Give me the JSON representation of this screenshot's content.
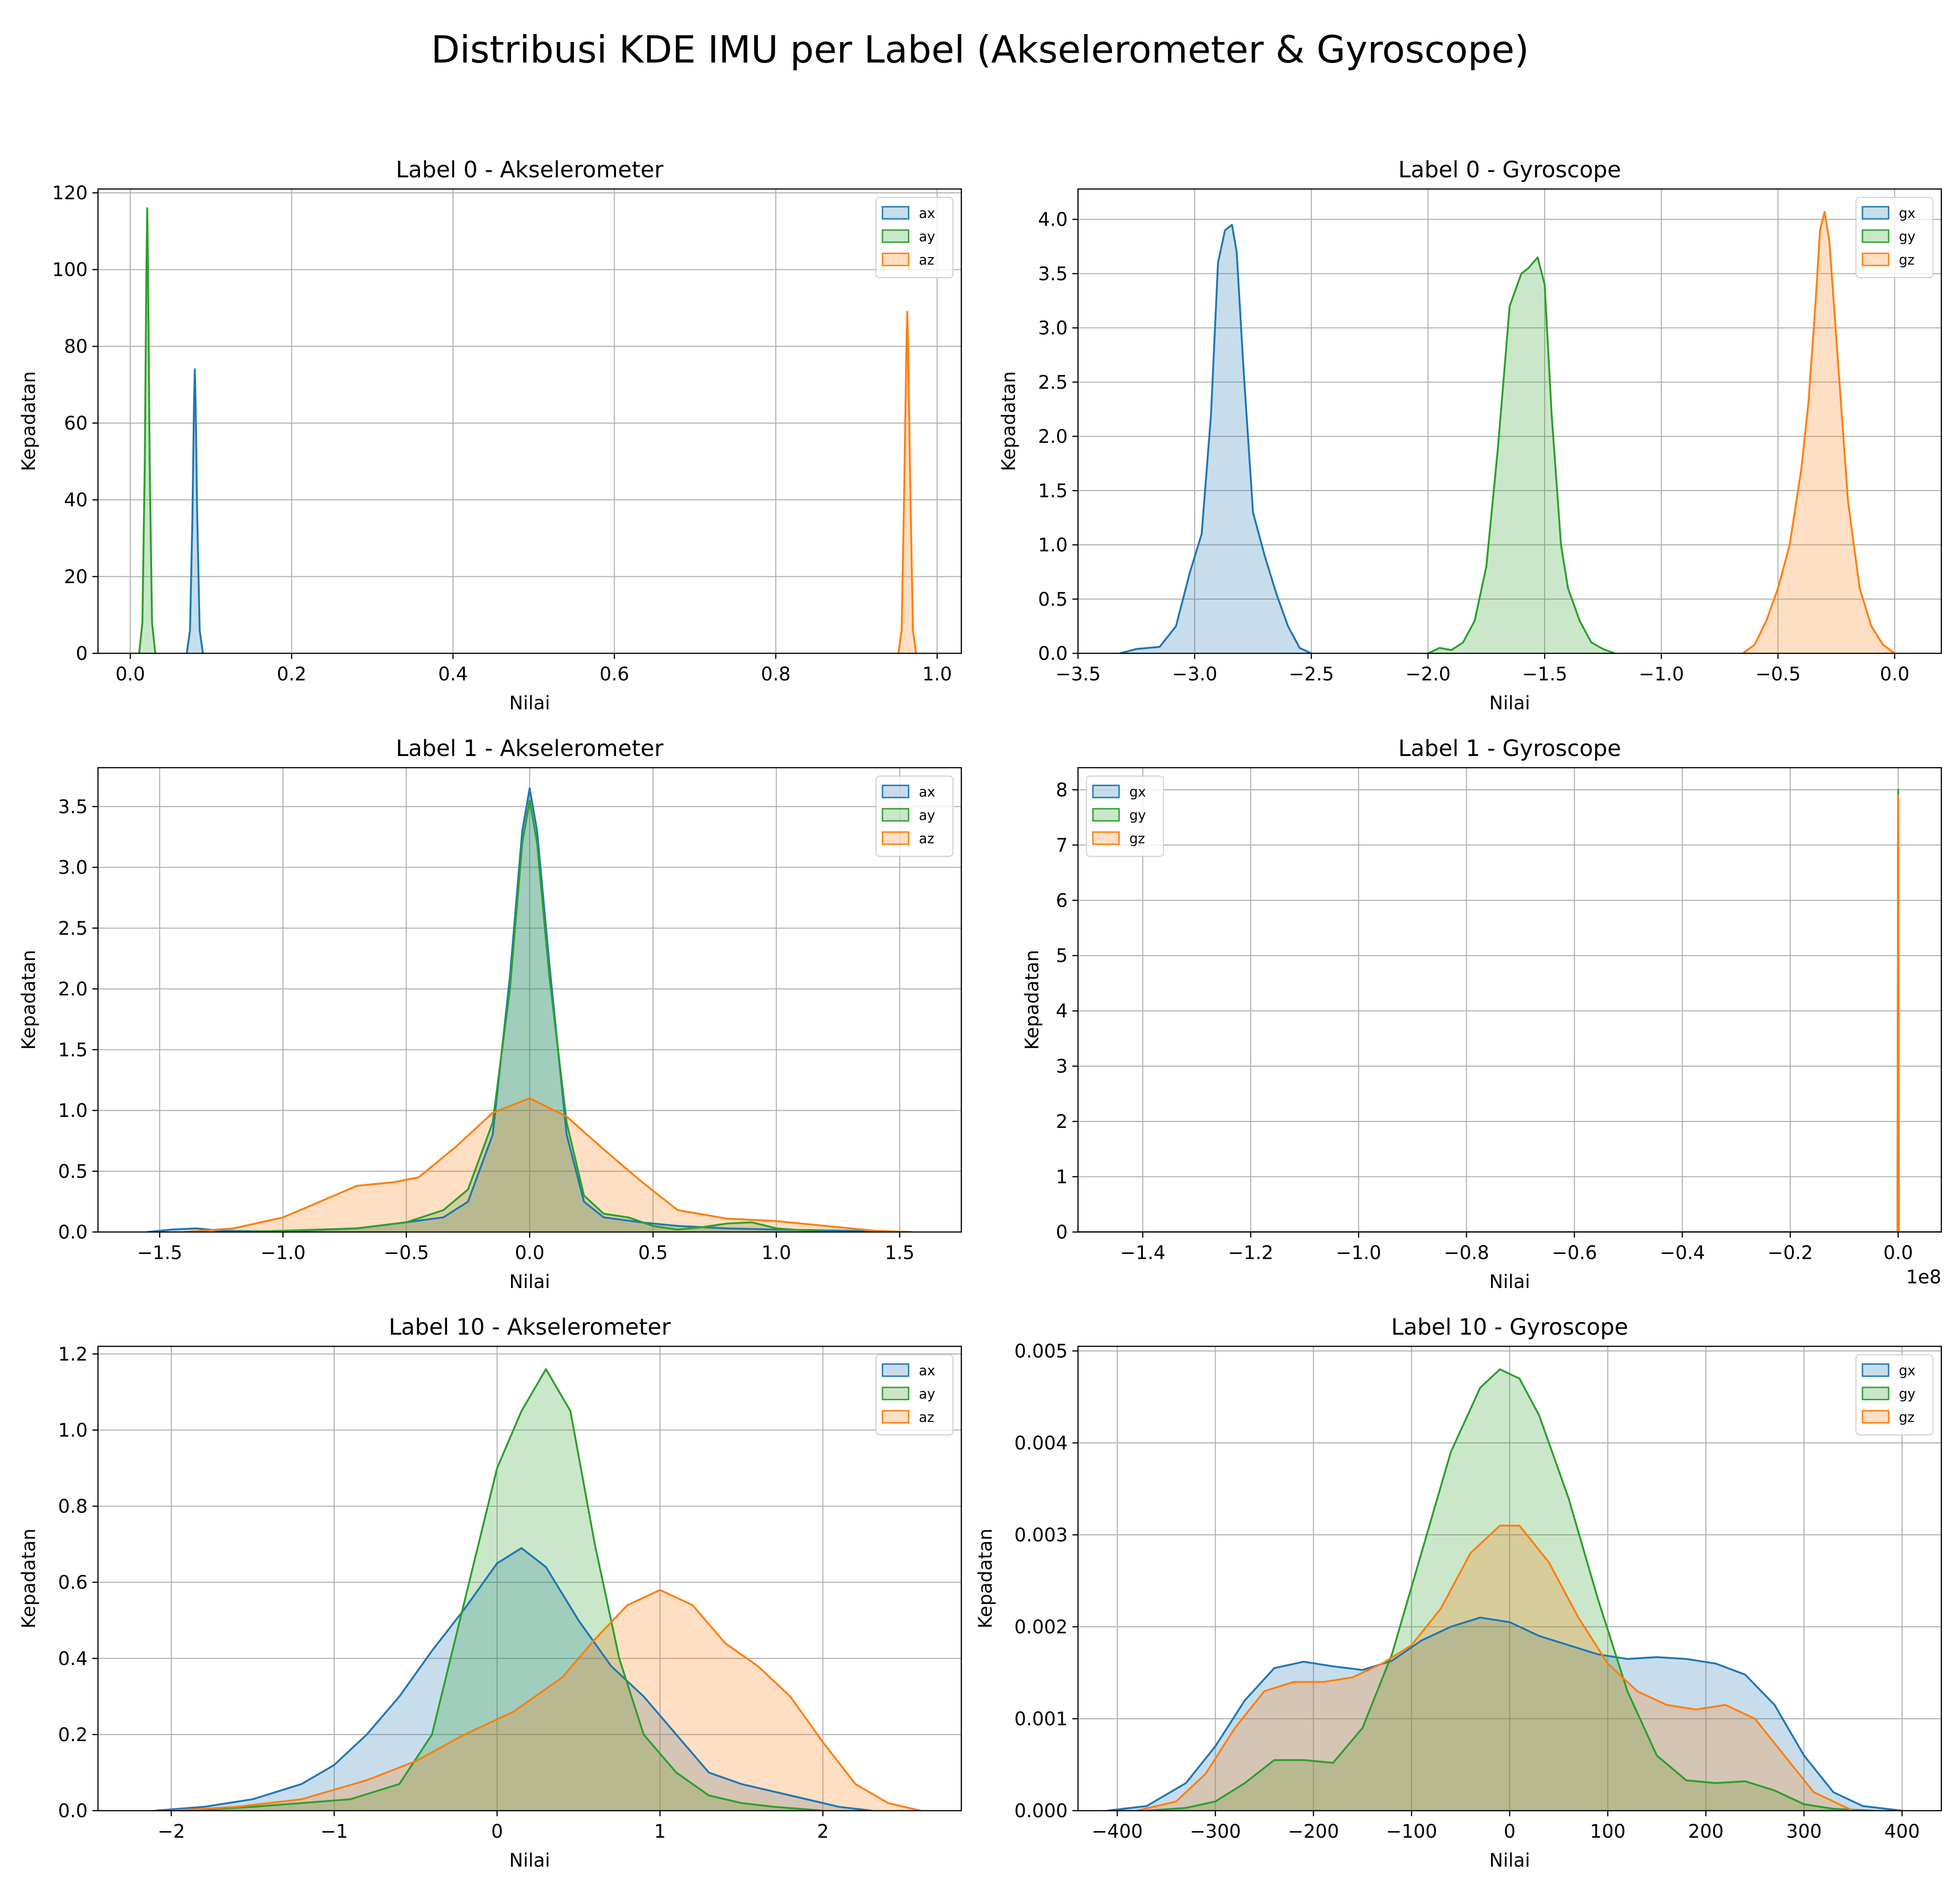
{
  "figure": {
    "title": "Distribusi KDE IMU per Label (Akselerometer & Gyroscope)",
    "colors": {
      "x": "#1f77b4",
      "y": "#2ca02c",
      "z": "#ff7f0e"
    }
  },
  "chart_data": [
    {
      "type": "area",
      "title": "Label 0 - Akselerometer",
      "xlabel": "Nilai",
      "ylabel": "Kepadatan",
      "xlim": [
        -0.04,
        1.03
      ],
      "ylim": [
        0,
        121
      ],
      "xticks": [
        0.0,
        0.2,
        0.4,
        0.6,
        0.8,
        1.0
      ],
      "xtick_labels": [
        "0.0",
        "0.2",
        "0.4",
        "0.6",
        "0.8",
        "1.0"
      ],
      "yticks": [
        0,
        20,
        40,
        60,
        80,
        100,
        120
      ],
      "ytick_labels": [
        "0",
        "20",
        "40",
        "60",
        "80",
        "100",
        "120"
      ],
      "grid": true,
      "legend": "top-right",
      "series": [
        {
          "name": "ax",
          "color": "#1f77b4",
          "x": [
            0.07,
            0.074,
            0.077,
            0.079,
            0.08,
            0.081,
            0.083,
            0.086,
            0.09
          ],
          "y": [
            0,
            6,
            35,
            65,
            74,
            65,
            35,
            6,
            0
          ]
        },
        {
          "name": "ay",
          "color": "#2ca02c",
          "x": [
            0.011,
            0.015,
            0.018,
            0.02,
            0.021,
            0.022,
            0.024,
            0.027,
            0.031
          ],
          "y": [
            0,
            8,
            50,
            100,
            116,
            100,
            50,
            8,
            0
          ]
        },
        {
          "name": "az",
          "color": "#ff7f0e",
          "x": [
            0.952,
            0.956,
            0.959,
            0.962,
            0.963,
            0.964,
            0.967,
            0.97,
            0.974
          ],
          "y": [
            0,
            6,
            40,
            80,
            89,
            80,
            40,
            6,
            0
          ]
        }
      ]
    },
    {
      "type": "area",
      "title": "Label 0 - Gyroscope",
      "xlabel": "Nilai",
      "ylabel": "Kepadatan",
      "xlim": [
        -3.5,
        0.2
      ],
      "ylim": [
        0,
        4.28
      ],
      "xticks": [
        -3.5,
        -3.0,
        -2.5,
        -2.0,
        -1.5,
        -1.0,
        -0.5,
        0.0
      ],
      "xtick_labels": [
        "−3.5",
        "−3.0",
        "−2.5",
        "−2.0",
        "−1.5",
        "−1.0",
        "−0.5",
        "0.0"
      ],
      "yticks": [
        0.0,
        0.5,
        1.0,
        1.5,
        2.0,
        2.5,
        3.0,
        3.5,
        4.0
      ],
      "ytick_labels": [
        "0.0",
        "0.5",
        "1.0",
        "1.5",
        "2.0",
        "2.5",
        "3.0",
        "3.5",
        "4.0"
      ],
      "grid": true,
      "legend": "top-right",
      "series": [
        {
          "name": "gx",
          "color": "#1f77b4",
          "x": [
            -3.32,
            -3.25,
            -3.15,
            -3.08,
            -3.02,
            -2.97,
            -2.93,
            -2.9,
            -2.87,
            -2.84,
            -2.82,
            -2.79,
            -2.75,
            -2.7,
            -2.65,
            -2.6,
            -2.55,
            -2.5
          ],
          "y": [
            0,
            0.04,
            0.06,
            0.25,
            0.75,
            1.1,
            2.2,
            3.6,
            3.9,
            3.95,
            3.7,
            2.6,
            1.3,
            0.9,
            0.55,
            0.25,
            0.05,
            0
          ]
        },
        {
          "name": "gy",
          "color": "#2ca02c",
          "x": [
            -2.0,
            -1.95,
            -1.9,
            -1.85,
            -1.8,
            -1.75,
            -1.7,
            -1.65,
            -1.6,
            -1.57,
            -1.53,
            -1.5,
            -1.47,
            -1.43,
            -1.4,
            -1.35,
            -1.3,
            -1.25,
            -1.2
          ],
          "y": [
            0,
            0.05,
            0.03,
            0.1,
            0.3,
            0.8,
            1.9,
            3.2,
            3.5,
            3.55,
            3.65,
            3.4,
            2.2,
            1.0,
            0.6,
            0.3,
            0.1,
            0.04,
            0
          ]
        },
        {
          "name": "gz",
          "color": "#ff7f0e",
          "x": [
            -0.65,
            -0.6,
            -0.55,
            -0.5,
            -0.45,
            -0.4,
            -0.37,
            -0.34,
            -0.32,
            -0.3,
            -0.28,
            -0.25,
            -0.2,
            -0.15,
            -0.1,
            -0.05,
            0.0
          ],
          "y": [
            0,
            0.08,
            0.3,
            0.6,
            1.0,
            1.7,
            2.3,
            3.2,
            3.9,
            4.07,
            3.8,
            2.9,
            1.4,
            0.6,
            0.25,
            0.08,
            0
          ]
        }
      ]
    },
    {
      "type": "area",
      "title": "Label 1 - Akselerometer",
      "xlabel": "Nilai",
      "ylabel": "Kepadatan",
      "xlim": [
        -1.75,
        1.75
      ],
      "ylim": [
        0,
        3.82
      ],
      "xticks": [
        -1.5,
        -1.0,
        -0.5,
        0.0,
        0.5,
        1.0,
        1.5
      ],
      "xtick_labels": [
        "−1.5",
        "−1.0",
        "−0.5",
        "0.0",
        "0.5",
        "1.0",
        "1.5"
      ],
      "yticks": [
        0.0,
        0.5,
        1.0,
        1.5,
        2.0,
        2.5,
        3.0,
        3.5
      ],
      "ytick_labels": [
        "0.0",
        "0.5",
        "1.0",
        "1.5",
        "2.0",
        "2.5",
        "3.0",
        "3.5"
      ],
      "grid": true,
      "legend": "top-right",
      "series": [
        {
          "name": "ax",
          "color": "#1f77b4",
          "x": [
            -1.55,
            -1.45,
            -1.35,
            -1.25,
            -1.0,
            -0.7,
            -0.5,
            -0.35,
            -0.25,
            -0.15,
            -0.08,
            -0.03,
            0.0,
            0.03,
            0.08,
            0.15,
            0.22,
            0.3,
            0.45,
            0.6,
            0.8,
            1.0,
            1.3,
            1.55
          ],
          "y": [
            0,
            0.02,
            0.03,
            0.01,
            0.005,
            0.03,
            0.08,
            0.12,
            0.25,
            0.8,
            2.1,
            3.3,
            3.65,
            3.3,
            2.2,
            0.8,
            0.25,
            0.12,
            0.08,
            0.05,
            0.03,
            0.02,
            0.01,
            0
          ]
        },
        {
          "name": "ay",
          "color": "#2ca02c",
          "x": [
            -1.2,
            -1.0,
            -0.7,
            -0.5,
            -0.35,
            -0.25,
            -0.15,
            -0.08,
            -0.03,
            0.0,
            0.03,
            0.08,
            0.15,
            0.22,
            0.3,
            0.4,
            0.5,
            0.6,
            0.7,
            0.8,
            0.9,
            1.0,
            1.2
          ],
          "y": [
            0,
            0.01,
            0.03,
            0.08,
            0.18,
            0.35,
            0.9,
            2.0,
            3.2,
            3.55,
            3.2,
            2.1,
            0.9,
            0.3,
            0.15,
            0.12,
            0.05,
            0.02,
            0.04,
            0.07,
            0.08,
            0.03,
            0
          ]
        },
        {
          "name": "az",
          "color": "#ff7f0e",
          "x": [
            -1.4,
            -1.2,
            -1.0,
            -0.85,
            -0.7,
            -0.55,
            -0.45,
            -0.3,
            -0.15,
            0.0,
            0.15,
            0.3,
            0.45,
            0.6,
            0.8,
            1.0,
            1.2,
            1.4,
            1.55
          ],
          "y": [
            0,
            0.03,
            0.12,
            0.25,
            0.38,
            0.41,
            0.45,
            0.7,
            0.98,
            1.1,
            0.95,
            0.68,
            0.42,
            0.18,
            0.11,
            0.09,
            0.05,
            0.01,
            0
          ]
        }
      ]
    },
    {
      "type": "area",
      "title": "Label 1 - Gyroscope",
      "xlabel": "Nilai",
      "ylabel": "Kepadatan",
      "x_offset_label": "1e8",
      "xlim": [
        -1.52,
        0.08
      ],
      "ylim": [
        0,
        8.4
      ],
      "xticks": [
        -1.4,
        -1.2,
        -1.0,
        -0.8,
        -0.6,
        -0.4,
        -0.2,
        0.0
      ],
      "xtick_labels": [
        "−1.4",
        "−1.2",
        "−1.0",
        "−0.8",
        "−0.6",
        "−0.4",
        "−0.2",
        "0.0"
      ],
      "yticks": [
        0,
        1,
        2,
        3,
        4,
        5,
        6,
        7,
        8
      ],
      "ytick_labels": [
        "0",
        "1",
        "2",
        "3",
        "4",
        "5",
        "6",
        "7",
        "8"
      ],
      "grid": true,
      "legend": "top-left",
      "series": [
        {
          "name": "gx",
          "color": "#1f77b4",
          "x": [
            -1.52,
            -0.0012,
            0.0,
            0.0012,
            0.08
          ],
          "y": [
            0,
            0,
            8.0,
            0,
            0
          ]
        },
        {
          "name": "gy",
          "color": "#2ca02c",
          "x": [
            -1.52,
            -0.0012,
            0.0,
            0.0012,
            0.08
          ],
          "y": [
            0,
            0,
            8.0,
            0,
            0
          ]
        },
        {
          "name": "gz",
          "color": "#ff7f0e",
          "x": [
            -1.52,
            -0.0012,
            0.0,
            0.0012,
            0.08
          ],
          "y": [
            0,
            0,
            7.9,
            0,
            0
          ]
        }
      ]
    },
    {
      "type": "area",
      "title": "Label 10 - Akselerometer",
      "xlabel": "Nilai",
      "ylabel": "Kepadatan",
      "xlim": [
        -2.45,
        2.85
      ],
      "ylim": [
        0,
        1.22
      ],
      "xticks": [
        -2,
        -1,
        0,
        1,
        2
      ],
      "xtick_labels": [
        "−2",
        "−1",
        "0",
        "1",
        "2"
      ],
      "yticks": [
        0.0,
        0.2,
        0.4,
        0.6,
        0.8,
        1.0,
        1.2
      ],
      "ytick_labels": [
        "0.0",
        "0.2",
        "0.4",
        "0.6",
        "0.8",
        "1.0",
        "1.2"
      ],
      "grid": true,
      "legend": "top-right",
      "series": [
        {
          "name": "ax",
          "color": "#1f77b4",
          "x": [
            -2.1,
            -1.8,
            -1.5,
            -1.2,
            -1.0,
            -0.8,
            -0.6,
            -0.4,
            -0.2,
            0.0,
            0.15,
            0.3,
            0.5,
            0.7,
            0.9,
            1.1,
            1.3,
            1.5,
            1.7,
            1.9,
            2.1,
            2.3
          ],
          "y": [
            0,
            0.01,
            0.03,
            0.07,
            0.12,
            0.2,
            0.3,
            0.42,
            0.53,
            0.65,
            0.69,
            0.64,
            0.5,
            0.38,
            0.3,
            0.2,
            0.1,
            0.07,
            0.05,
            0.03,
            0.01,
            0
          ]
        },
        {
          "name": "ay",
          "color": "#2ca02c",
          "x": [
            -1.9,
            -1.5,
            -1.2,
            -0.9,
            -0.6,
            -0.4,
            -0.2,
            0.0,
            0.15,
            0.3,
            0.45,
            0.6,
            0.75,
            0.9,
            1.1,
            1.3,
            1.5,
            1.7,
            2.0
          ],
          "y": [
            0,
            0.01,
            0.02,
            0.03,
            0.07,
            0.2,
            0.55,
            0.9,
            1.05,
            1.16,
            1.05,
            0.7,
            0.4,
            0.2,
            0.1,
            0.04,
            0.02,
            0.01,
            0
          ]
        },
        {
          "name": "az",
          "color": "#ff7f0e",
          "x": [
            -2.0,
            -1.6,
            -1.2,
            -0.8,
            -0.5,
            -0.2,
            0.1,
            0.4,
            0.6,
            0.8,
            1.0,
            1.2,
            1.4,
            1.6,
            1.8,
            2.0,
            2.2,
            2.4,
            2.6
          ],
          "y": [
            0,
            0.01,
            0.03,
            0.08,
            0.13,
            0.2,
            0.26,
            0.35,
            0.45,
            0.54,
            0.58,
            0.54,
            0.44,
            0.38,
            0.3,
            0.18,
            0.07,
            0.02,
            0
          ]
        }
      ]
    },
    {
      "type": "area",
      "title": "Label 10 - Gyroscope",
      "xlabel": "Nilai",
      "ylabel": "Kepadatan",
      "xlim": [
        -440,
        440
      ],
      "ylim": [
        0,
        0.00505
      ],
      "xticks": [
        -400,
        -300,
        -200,
        -100,
        0,
        100,
        200,
        300,
        400
      ],
      "xtick_labels": [
        "−400",
        "−300",
        "−200",
        "−100",
        "0",
        "100",
        "200",
        "300",
        "400"
      ],
      "yticks": [
        0.0,
        0.001,
        0.002,
        0.003,
        0.004,
        0.005
      ],
      "ytick_labels": [
        "0.000",
        "0.001",
        "0.002",
        "0.003",
        "0.004",
        "0.005"
      ],
      "grid": true,
      "legend": "top-right",
      "series": [
        {
          "name": "gx",
          "color": "#1f77b4",
          "x": [
            -410,
            -370,
            -330,
            -300,
            -270,
            -240,
            -210,
            -180,
            -150,
            -120,
            -90,
            -60,
            -30,
            0,
            30,
            60,
            90,
            120,
            150,
            180,
            210,
            240,
            270,
            300,
            330,
            360,
            400
          ],
          "y": [
            0,
            5e-05,
            0.0003,
            0.0007,
            0.0012,
            0.00155,
            0.00162,
            0.00157,
            0.00153,
            0.00163,
            0.00185,
            0.002,
            0.0021,
            0.00205,
            0.0019,
            0.0018,
            0.0017,
            0.00165,
            0.00167,
            0.00165,
            0.0016,
            0.00148,
            0.00115,
            0.0006,
            0.0002,
            5e-05,
            0
          ]
        },
        {
          "name": "gy",
          "color": "#2ca02c",
          "x": [
            -370,
            -330,
            -300,
            -270,
            -240,
            -210,
            -180,
            -150,
            -120,
            -90,
            -60,
            -30,
            -10,
            10,
            30,
            60,
            90,
            120,
            150,
            180,
            210,
            240,
            270,
            300,
            330,
            370
          ],
          "y": [
            0,
            3e-05,
            0.0001,
            0.0003,
            0.00055,
            0.00055,
            0.00052,
            0.0009,
            0.0017,
            0.0028,
            0.0039,
            0.0046,
            0.0048,
            0.0047,
            0.0043,
            0.0034,
            0.0023,
            0.0013,
            0.0006,
            0.00033,
            0.0003,
            0.00032,
            0.00022,
            7e-05,
            2e-05,
            0
          ]
        },
        {
          "name": "gz",
          "color": "#ff7f0e",
          "x": [
            -380,
            -340,
            -310,
            -280,
            -250,
            -220,
            -190,
            -160,
            -130,
            -100,
            -70,
            -40,
            -10,
            10,
            40,
            70,
            100,
            130,
            160,
            190,
            220,
            250,
            280,
            310,
            350
          ],
          "y": [
            0,
            0.0001,
            0.0004,
            0.0009,
            0.0013,
            0.0014,
            0.0014,
            0.00145,
            0.0016,
            0.0018,
            0.0022,
            0.0028,
            0.0031,
            0.0031,
            0.0027,
            0.0021,
            0.0016,
            0.0013,
            0.00115,
            0.0011,
            0.00115,
            0.001,
            0.0006,
            0.0002,
            0
          ]
        }
      ]
    }
  ]
}
